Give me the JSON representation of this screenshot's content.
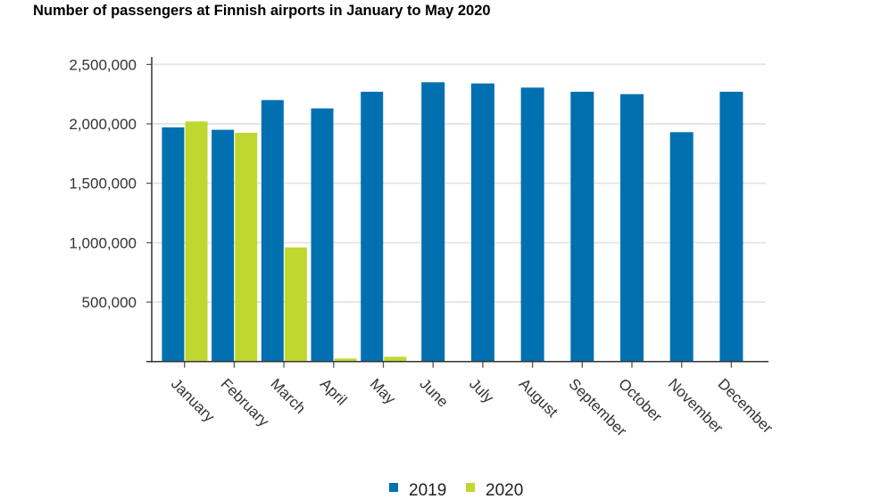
{
  "chart_data": {
    "type": "bar",
    "title": "Number of passengers at Finnish airports in January to May 2020",
    "xlabel": "",
    "ylabel": "",
    "ylim": [
      0,
      2500000
    ],
    "yticks": [
      500000,
      1000000,
      1500000,
      2000000,
      2500000
    ],
    "ytick_labels": [
      "500,000",
      "1,000,000",
      "1,500,000",
      "2,000,000",
      "2,500,000"
    ],
    "grid": true,
    "legend_position": "bottom",
    "categories": [
      "January",
      "February",
      "March",
      "April",
      "May",
      "June",
      "July",
      "August",
      "September",
      "October",
      "November",
      "December"
    ],
    "series": [
      {
        "name": "2019",
        "color": "#0070b0",
        "values": [
          1970000,
          1950000,
          2200000,
          2130000,
          2270000,
          2350000,
          2340000,
          2305000,
          2270000,
          2250000,
          1930000,
          2270000
        ]
      },
      {
        "name": "2020",
        "color": "#c0d72f",
        "values": [
          2020000,
          1925000,
          960000,
          25000,
          40000,
          null,
          null,
          null,
          null,
          null,
          null,
          null
        ]
      }
    ]
  }
}
